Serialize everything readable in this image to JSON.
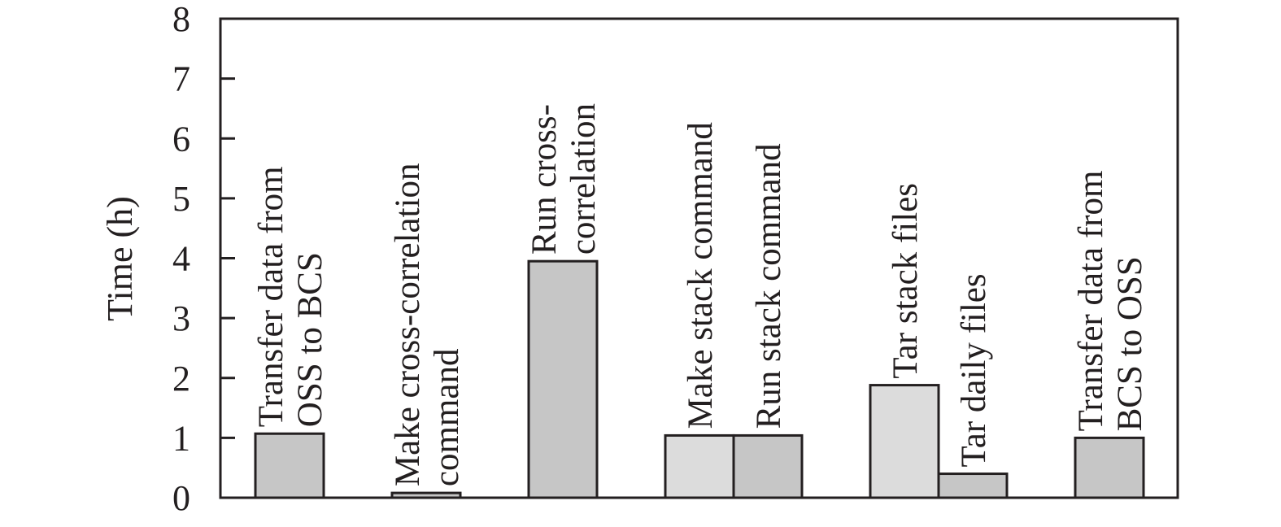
{
  "chart_data": {
    "type": "bar",
    "title": "",
    "xlabel": "",
    "ylabel": "Time (h)",
    "ylim": [
      0,
      8
    ],
    "yticks": [
      0,
      1,
      2,
      3,
      4,
      5,
      6,
      7,
      8
    ],
    "grid": false,
    "legend": "none",
    "bars": [
      {
        "label": [
          "Transfer data from",
          "OSS to BCS"
        ],
        "value": 1.07,
        "color": "#c6c6c6"
      },
      {
        "label": [
          "Make cross-correlation",
          "command"
        ],
        "value": 0.08,
        "color": "#c6c6c6"
      },
      {
        "label": [
          "Run cross-",
          "correlation"
        ],
        "value": 3.95,
        "color": "#c6c6c6"
      },
      {
        "label": [
          "Make stack command"
        ],
        "value": 1.04,
        "color": "#dcdcdc"
      },
      {
        "label": [
          "Run stack command"
        ],
        "value": 1.04,
        "color": "#c6c6c6"
      },
      {
        "label": [
          "Tar stack files"
        ],
        "value": 1.88,
        "color": "#dcdcdc"
      },
      {
        "label": [
          "Tar daily files"
        ],
        "value": 0.4,
        "color": "#c6c6c6"
      },
      {
        "label": [
          "Transfer data from",
          "BCS to OSS"
        ],
        "value": 1.0,
        "color": "#c6c6c6"
      }
    ]
  }
}
